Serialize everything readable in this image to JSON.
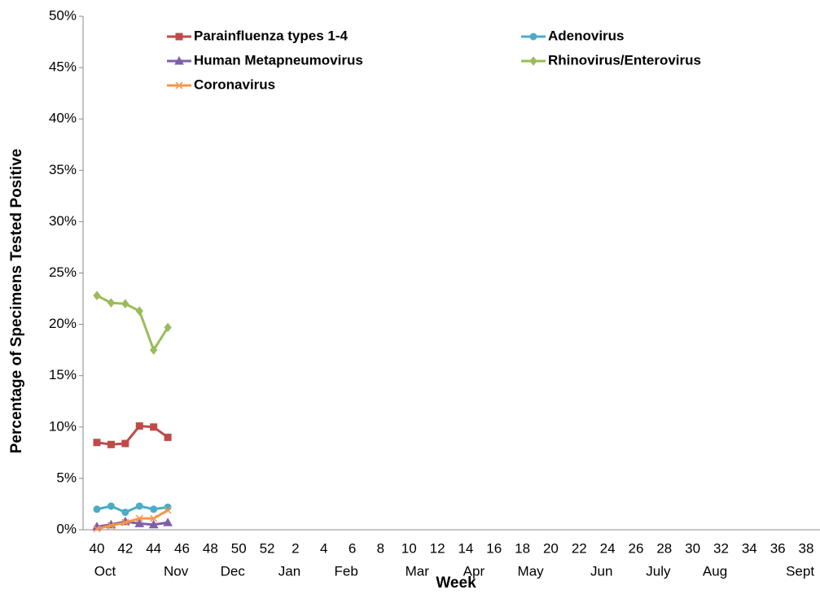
{
  "chart_data": {
    "type": "line",
    "x_label": "Week",
    "y_label": "Percentage of Specimens Tested Positive",
    "categories": [
      "40",
      null,
      "42",
      null,
      "44",
      null,
      "46",
      null,
      "48",
      null,
      "50",
      null,
      "52",
      null,
      "2",
      null,
      "4",
      null,
      "6",
      null,
      "8",
      null,
      "10",
      null,
      "12",
      null,
      "14",
      null,
      "16",
      null,
      "18",
      null,
      "20",
      null,
      "22",
      null,
      "24",
      null,
      "26",
      null,
      "28",
      null,
      "30",
      null,
      "32",
      null,
      "34",
      null,
      "36",
      null,
      "38",
      null
    ],
    "month_labels": [
      "Oct",
      null,
      null,
      null,
      null,
      "Nov",
      null,
      null,
      null,
      "Dec",
      null,
      null,
      null,
      "Jan",
      null,
      null,
      null,
      "Feb",
      null,
      null,
      null,
      null,
      "Mar",
      null,
      null,
      null,
      "Apr",
      null,
      null,
      null,
      "May",
      null,
      null,
      null,
      null,
      "Jun",
      null,
      null,
      null,
      "July",
      null,
      null,
      null,
      "Aug",
      null,
      null,
      null,
      null,
      null,
      "Sept",
      null,
      null
    ],
    "ylim": [
      0,
      50
    ],
    "yticks": [
      {
        "value": 0,
        "label": "0%"
      },
      {
        "value": 5,
        "label": "5%"
      },
      {
        "value": 10,
        "label": "10%"
      },
      {
        "value": 15,
        "label": "15%"
      },
      {
        "value": 20,
        "label": "20%"
      },
      {
        "value": 25,
        "label": "25%"
      },
      {
        "value": 30,
        "label": "30%"
      },
      {
        "value": 35,
        "label": "35%"
      },
      {
        "value": 40,
        "label": "40%"
      },
      {
        "value": 45,
        "label": "45%"
      },
      {
        "value": 50,
        "label": "50%"
      }
    ],
    "series": [
      {
        "name": "Parainfluenza types 1-4",
        "color": "#be4b48",
        "marker": "square",
        "values": [
          8.5,
          8.3,
          8.4,
          10.1,
          10.0,
          9.0,
          null,
          null,
          null,
          null,
          null,
          null,
          null,
          null,
          null,
          null,
          null,
          null,
          null,
          null,
          null,
          null,
          null,
          null,
          null,
          null,
          null,
          null,
          null,
          null,
          null,
          null,
          null,
          null,
          null,
          null,
          null,
          null,
          null,
          null,
          null,
          null,
          null,
          null,
          null,
          null,
          null,
          null,
          null,
          null,
          null,
          null
        ]
      },
      {
        "name": "Adenovirus",
        "color": "#4bacc6",
        "marker": "circle",
        "values": [
          2.0,
          2.3,
          1.7,
          2.3,
          2.0,
          2.2,
          null,
          null,
          null,
          null,
          null,
          null,
          null,
          null,
          null,
          null,
          null,
          null,
          null,
          null,
          null,
          null,
          null,
          null,
          null,
          null,
          null,
          null,
          null,
          null,
          null,
          null,
          null,
          null,
          null,
          null,
          null,
          null,
          null,
          null,
          null,
          null,
          null,
          null,
          null,
          null,
          null,
          null,
          null,
          null,
          null,
          null
        ]
      },
      {
        "name": "Human Metapneumovirus",
        "color": "#7f5fa9",
        "marker": "triangle",
        "values": [
          0.3,
          0.5,
          0.8,
          0.6,
          0.5,
          0.7,
          null,
          null,
          null,
          null,
          null,
          null,
          null,
          null,
          null,
          null,
          null,
          null,
          null,
          null,
          null,
          null,
          null,
          null,
          null,
          null,
          null,
          null,
          null,
          null,
          null,
          null,
          null,
          null,
          null,
          null,
          null,
          null,
          null,
          null,
          null,
          null,
          null,
          null,
          null,
          null,
          null,
          null,
          null,
          null,
          null,
          null
        ]
      },
      {
        "name": "Rhinovirus/Enterovirus",
        "color": "#9bbb59",
        "marker": "diamond",
        "values": [
          22.8,
          22.1,
          22.0,
          21.3,
          17.5,
          19.7,
          null,
          null,
          null,
          null,
          null,
          null,
          null,
          null,
          null,
          null,
          null,
          null,
          null,
          null,
          null,
          null,
          null,
          null,
          null,
          null,
          null,
          null,
          null,
          null,
          null,
          null,
          null,
          null,
          null,
          null,
          null,
          null,
          null,
          null,
          null,
          null,
          null,
          null,
          null,
          null,
          null,
          null,
          null,
          null,
          null,
          null
        ]
      },
      {
        "name": "Coronavirus",
        "color": "#f79646",
        "marker": "x",
        "values": [
          0.1,
          0.4,
          0.7,
          1.1,
          1.1,
          1.9,
          null,
          null,
          null,
          null,
          null,
          null,
          null,
          null,
          null,
          null,
          null,
          null,
          null,
          null,
          null,
          null,
          null,
          null,
          null,
          null,
          null,
          null,
          null,
          null,
          null,
          null,
          null,
          null,
          null,
          null,
          null,
          null,
          null,
          null,
          null,
          null,
          null,
          null,
          null,
          null,
          null,
          null,
          null,
          null,
          null,
          null
        ]
      }
    ]
  }
}
